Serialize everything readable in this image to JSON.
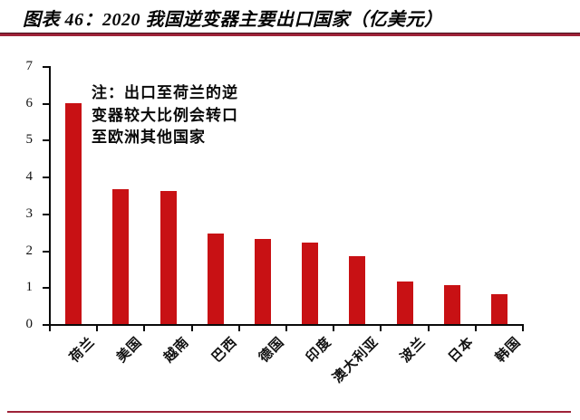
{
  "title": "图表 46：2020 我国逆变器主要出口国家（亿美元）",
  "annotation": {
    "lines": [
      "注：出口至荷兰的逆",
      "变器较大比例会转口",
      "至欧洲其他国家"
    ]
  },
  "chart_data": {
    "type": "bar",
    "title": "图表 46：2020 我国逆变器主要出口国家（亿美元）",
    "categories": [
      "荷兰",
      "美国",
      "越南",
      "巴西",
      "德国",
      "印度",
      "澳大利亚",
      "波兰",
      "日本",
      "韩国"
    ],
    "values": [
      6.0,
      3.65,
      3.6,
      2.45,
      2.3,
      2.2,
      1.85,
      1.15,
      1.05,
      0.8
    ],
    "xlabel": "",
    "ylabel": "",
    "ylim": [
      0,
      7
    ],
    "yticks": [
      0,
      1,
      2,
      3,
      4,
      5,
      6,
      7
    ],
    "grid": false,
    "legend_position": "none",
    "bar_color": "#c81114",
    "annotation_text": "注：出口至荷兰的逆变器较大比例会转口至欧洲其他国家"
  },
  "colors": {
    "bar": "#c81114",
    "divider": "#9e2238",
    "axis": "#0a0a0a",
    "text": "#050505"
  }
}
